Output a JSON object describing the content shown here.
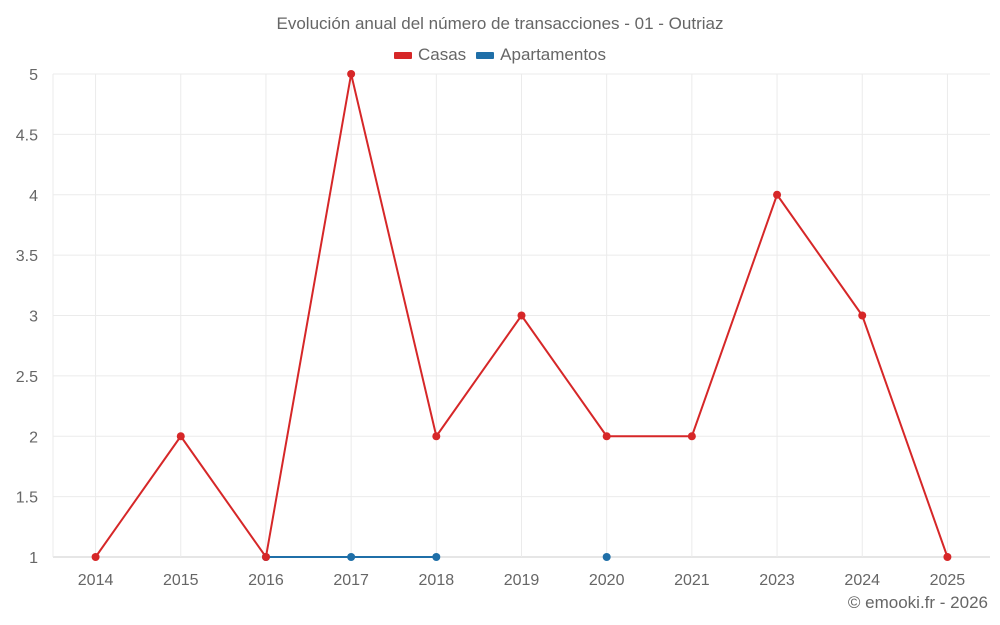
{
  "chart_data": {
    "type": "line",
    "title": "Evolución anual del número de transacciones - 01 - Outriaz",
    "xlabel": "",
    "ylabel": "",
    "categories": [
      "2014",
      "2015",
      "2016",
      "2017",
      "2018",
      "2019",
      "2020",
      "2021",
      "2023",
      "2024",
      "2025"
    ],
    "series": [
      {
        "name": "Casas",
        "color": "#d62728",
        "values": [
          1,
          2,
          1,
          5,
          2,
          3,
          2,
          2,
          4,
          3,
          1
        ]
      },
      {
        "name": "Apartamentos",
        "color": "#1f6fa8",
        "values": [
          null,
          null,
          1,
          1,
          1,
          null,
          1,
          null,
          null,
          null,
          null
        ]
      }
    ],
    "ylim": [
      1,
      5
    ],
    "yticks": [
      "1",
      "1.5",
      "2",
      "2.5",
      "3",
      "3.5",
      "4",
      "4.5",
      "5"
    ],
    "grid": true,
    "legend_position": "top"
  },
  "legend": {
    "items": [
      {
        "label": "Casas",
        "color": "#d62728"
      },
      {
        "label": "Apartamentos",
        "color": "#1f6fa8"
      }
    ]
  },
  "footer": {
    "credit": "© emooki.fr - 2026"
  }
}
